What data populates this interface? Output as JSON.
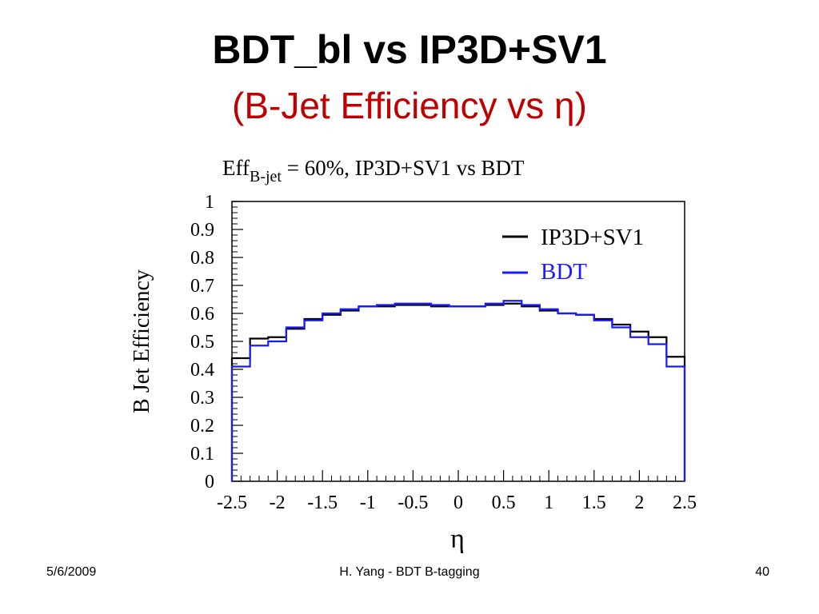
{
  "slide": {
    "title_line1": "BDT_bl vs IP3D+SV1",
    "title_line2": "(B-Jet Efficiency vs η)",
    "footer_date": "5/6/2009",
    "footer_center": "H. Yang - BDT B-tagging",
    "footer_page": "40"
  },
  "chart_data": {
    "type": "line",
    "step": true,
    "title_main": "Eff",
    "title_sub": "B-jet",
    "title_rest": " = 60%, IP3D+SV1  vs BDT",
    "xlabel": "η",
    "ylabel": "B Jet Efficiency",
    "xlim": [
      -2.5,
      2.5
    ],
    "ylim": [
      0,
      1
    ],
    "xticks": [
      "-2.5",
      "-2",
      "-1.5",
      "-1",
      "-0.5",
      "0",
      "0.5",
      "1",
      "1.5",
      "2",
      "2.5"
    ],
    "yticks": [
      "0",
      "0.1",
      "0.2",
      "0.3",
      "0.4",
      "0.5",
      "0.6",
      "0.7",
      "0.8",
      "0.9",
      "1"
    ],
    "legend_position": "top-right",
    "grid": false,
    "bin_edges": [
      -2.5,
      -2.3,
      -2.1,
      -1.9,
      -1.7,
      -1.5,
      -1.3,
      -1.1,
      -0.9,
      -0.7,
      -0.5,
      -0.3,
      -0.1,
      0.1,
      0.3,
      0.5,
      0.7,
      0.9,
      1.1,
      1.3,
      1.5,
      1.7,
      1.9,
      2.1,
      2.3,
      2.5
    ],
    "series": [
      {
        "name": "IP3D+SV1",
        "color": "#000000",
        "values": [
          0.44,
          0.51,
          0.515,
          0.545,
          0.58,
          0.595,
          0.61,
          0.625,
          0.625,
          0.63,
          0.63,
          0.625,
          0.625,
          0.625,
          0.63,
          0.635,
          0.625,
          0.61,
          0.6,
          0.595,
          0.58,
          0.56,
          0.535,
          0.515,
          0.445
        ]
      },
      {
        "name": "BDT",
        "color": "#1a1aff",
        "values": [
          0.41,
          0.485,
          0.5,
          0.55,
          0.575,
          0.6,
          0.615,
          0.625,
          0.63,
          0.635,
          0.635,
          0.63,
          0.625,
          0.625,
          0.635,
          0.645,
          0.63,
          0.615,
          0.6,
          0.595,
          0.575,
          0.55,
          0.515,
          0.49,
          0.41
        ]
      }
    ]
  }
}
